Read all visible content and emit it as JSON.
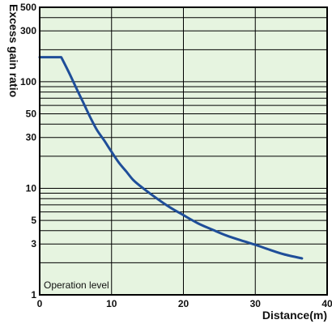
{
  "chart_data": {
    "type": "line",
    "title": "",
    "xlabel": "Distance(m)",
    "ylabel": "Excess gain ratio",
    "y_scale": "log",
    "xlim": [
      0,
      40
    ],
    "ylim": [
      1,
      500
    ],
    "x_ticks": [
      0,
      10,
      20,
      30,
      40
    ],
    "y_tick_labels": [
      1,
      3,
      5,
      10,
      30,
      50,
      100,
      300,
      500
    ],
    "y_minor_lines": [
      1,
      2,
      3,
      4,
      5,
      6,
      7,
      8,
      9,
      10,
      20,
      30,
      40,
      50,
      60,
      70,
      80,
      90,
      100,
      200,
      300,
      400,
      500
    ],
    "grid": true,
    "background_color": "#e6f4e0",
    "line_color": "#1f4e99",
    "annotation": "Operation level",
    "series": [
      {
        "x": [
          0,
          3,
          4,
          5,
          6,
          7,
          8,
          9,
          10,
          11,
          12,
          13,
          14,
          16,
          18,
          20,
          22,
          24,
          26,
          28,
          30,
          32,
          34,
          36.5
        ],
        "values": [
          170,
          170,
          125,
          90,
          65,
          47,
          35,
          28,
          22,
          17.5,
          14.5,
          12,
          10.5,
          8.3,
          6.7,
          5.6,
          4.7,
          4.1,
          3.6,
          3.25,
          2.95,
          2.65,
          2.4,
          2.2
        ]
      }
    ]
  }
}
